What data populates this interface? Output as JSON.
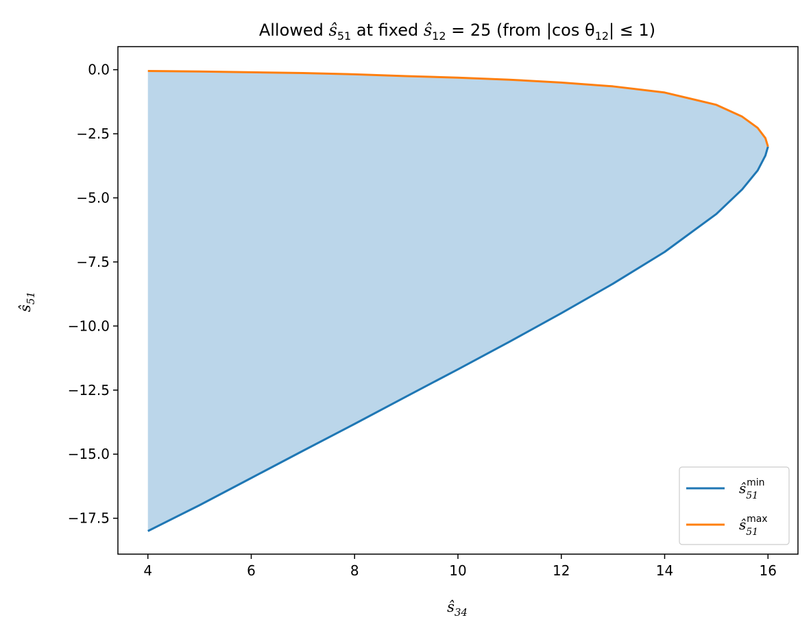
{
  "chart_data": {
    "type": "area",
    "title": {
      "pre": "Allowed ",
      "var1_main": "ŝ",
      "var1_sub": "51",
      "mid": " at fixed ",
      "var2_main": "ŝ",
      "var2_sub": "12",
      "eq": " = 25 (from |cos θ",
      "theta_sub": "12",
      "end": "| ≤ 1)"
    },
    "xlabel": {
      "main": "ŝ",
      "sub": "34"
    },
    "ylabel": {
      "main": "ŝ",
      "sub": "51"
    },
    "xlim": [
      3.42,
      16.58
    ],
    "ylim": [
      -18.9,
      0.9
    ],
    "xticks": [
      4,
      6,
      8,
      10,
      12,
      14,
      16
    ],
    "xtick_labels": [
      "4",
      "6",
      "8",
      "10",
      "12",
      "14",
      "16"
    ],
    "yticks": [
      0,
      -2.5,
      -5,
      -7.5,
      -10,
      -12.5,
      -15,
      -17.5
    ],
    "ytick_labels": [
      "0.0",
      "−2.5",
      "−5.0",
      "−7.5",
      "−10.0",
      "−12.5",
      "−15.0",
      "−17.5"
    ],
    "grid": false,
    "legend_position": "bottom-right",
    "fill_color": "#bbd6ea",
    "series": [
      {
        "name": "ŝ51min",
        "label_main": "ŝ",
        "label_sub": "51",
        "label_sup": "min",
        "color": "#1f77b4",
        "x": [
          4,
          5,
          6,
          7,
          8,
          9,
          10,
          11,
          12,
          13,
          14,
          15,
          15.5,
          15.8,
          15.95,
          16
        ],
        "values": [
          -18.0,
          -16.99,
          -15.93,
          -14.87,
          -13.82,
          -12.75,
          -11.69,
          -10.61,
          -9.5,
          -8.35,
          -7.11,
          -5.63,
          -4.67,
          -3.93,
          -3.35,
          -3.0
        ]
      },
      {
        "name": "ŝ51max",
        "label_main": "ŝ",
        "label_sub": "51",
        "label_sup": "max",
        "color": "#ff7f0e",
        "x": [
          4,
          5,
          6,
          7,
          8,
          9,
          10,
          11,
          12,
          13,
          14,
          15,
          15.5,
          15.8,
          15.95,
          16
        ],
        "values": [
          -0.05,
          -0.07,
          -0.1,
          -0.13,
          -0.18,
          -0.25,
          -0.31,
          -0.39,
          -0.5,
          -0.65,
          -0.89,
          -1.37,
          -1.83,
          -2.27,
          -2.67,
          -3.0
        ]
      }
    ]
  }
}
